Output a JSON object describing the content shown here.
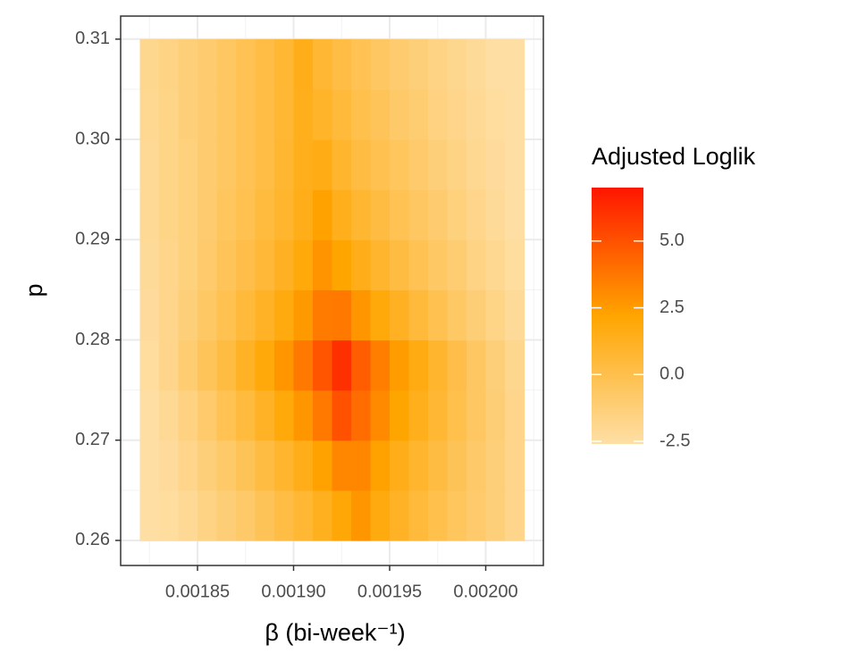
{
  "chart_data": {
    "type": "heatmap",
    "x_label": "β (bi-week⁻¹)",
    "y_label": "p",
    "legend_title": "Adjusted Loglik",
    "x": [
      0.001825,
      0.001835,
      0.001845,
      0.001855,
      0.001865,
      0.001875,
      0.001885,
      0.001895,
      0.001905,
      0.001915,
      0.001925,
      0.001935,
      0.001945,
      0.001955,
      0.001965,
      0.001975,
      0.001985,
      0.001995,
      0.002005,
      0.002015
    ],
    "y": [
      0.2625,
      0.2675,
      0.2725,
      0.2775,
      0.2825,
      0.2875,
      0.2925,
      0.2975,
      0.3025,
      0.3075
    ],
    "z": [
      [
        -2.5,
        -2.4,
        -2.1,
        -1.6,
        -1.2,
        -0.8,
        -0.3,
        0.2,
        0.7,
        1.3,
        2.0,
        2.7,
        1.8,
        1.1,
        0.5,
        0.0,
        -0.5,
        -0.9,
        -1.3,
        -1.8
      ],
      [
        -2.5,
        -2.3,
        -1.8,
        -1.3,
        -0.8,
        -0.3,
        0.3,
        0.9,
        1.5,
        2.3,
        3.2,
        3.2,
        2.3,
        1.5,
        0.9,
        0.3,
        -0.3,
        -0.8,
        -1.3,
        -1.8
      ],
      [
        -2.5,
        -2.1,
        -1.5,
        -0.9,
        -0.2,
        0.4,
        1.1,
        1.9,
        2.7,
        3.7,
        5.0,
        4.1,
        3.1,
        2.2,
        1.4,
        0.7,
        0.0,
        -0.6,
        -1.2,
        -1.8
      ],
      [
        -2.4,
        -1.8,
        -1.1,
        -0.4,
        0.3,
        1.1,
        1.9,
        2.7,
        3.7,
        4.9,
        6.1,
        4.6,
        3.5,
        2.5,
        1.7,
        0.9,
        0.1,
        -0.6,
        -1.3,
        -1.9
      ],
      [
        -2.3,
        -1.8,
        -1.3,
        -0.7,
        -0.1,
        0.5,
        1.1,
        1.8,
        2.6,
        3.6,
        3.7,
        2.7,
        1.9,
        1.2,
        0.5,
        -0.1,
        -0.7,
        -1.2,
        -1.7,
        -2.2
      ],
      [
        -2.2,
        -1.8,
        -1.4,
        -0.9,
        -0.4,
        0.1,
        0.6,
        1.2,
        1.9,
        2.8,
        2.2,
        1.5,
        0.9,
        0.3,
        -0.2,
        -0.7,
        -1.1,
        -1.6,
        -2.0,
        -2.4
      ],
      [
        -2.1,
        -1.7,
        -1.4,
        -1.0,
        -0.5,
        -0.1,
        0.4,
        0.9,
        1.5,
        2.3,
        1.4,
        0.8,
        0.3,
        -0.2,
        -0.6,
        -1.0,
        -1.4,
        -1.8,
        -2.2,
        -2.5
      ],
      [
        -2.1,
        -1.7,
        -1.4,
        -1.0,
        -0.6,
        -0.2,
        0.2,
        0.8,
        1.4,
        1.6,
        0.9,
        0.3,
        -0.1,
        -0.5,
        -0.9,
        -1.3,
        -1.6,
        -2.0,
        -2.3,
        -2.5
      ],
      [
        -2.0,
        -1.7,
        -1.3,
        -1.0,
        -0.6,
        -0.2,
        0.2,
        0.7,
        1.4,
        1.0,
        0.5,
        0.0,
        -0.4,
        -0.8,
        -1.1,
        -1.5,
        -1.8,
        -2.1,
        -2.4,
        -2.5
      ],
      [
        -1.9,
        -1.6,
        -1.3,
        -1.0,
        -0.6,
        -0.2,
        0.2,
        0.7,
        1.5,
        0.7,
        0.2,
        -0.2,
        -0.6,
        -1.0,
        -1.3,
        -1.6,
        -1.9,
        -2.2,
        -2.5,
        -2.5
      ]
    ],
    "xlim": [
      0.00181,
      0.00203
    ],
    "ylim": [
      0.2575,
      0.3123
    ],
    "xticks": [
      0.00185,
      {
        "value": 0.0019,
        "label": "0.00190"
      },
      0.00195,
      {
        "value": 0.002,
        "label": "0.00200"
      }
    ],
    "yticks": [
      0.26,
      0.27,
      0.28,
      0.29,
      {
        "value": 0.3,
        "label": "0.30"
      },
      0.31
    ],
    "xminor": [
      0.001825,
      0.001875,
      0.001925,
      0.001975,
      0.002025
    ],
    "yminor": [
      0.265,
      0.275,
      0.285,
      0.295,
      0.305
    ],
    "zlim": [
      -2.6,
      7.0
    ],
    "colorbar_ticks": [
      -2.5,
      {
        "value": 0,
        "label": "0.0"
      },
      2.5,
      {
        "value": 5,
        "label": "5.0"
      }
    ],
    "colors": [
      "#FEDFA6",
      "#FFA500",
      "#FF1500"
    ],
    "grid": true
  }
}
